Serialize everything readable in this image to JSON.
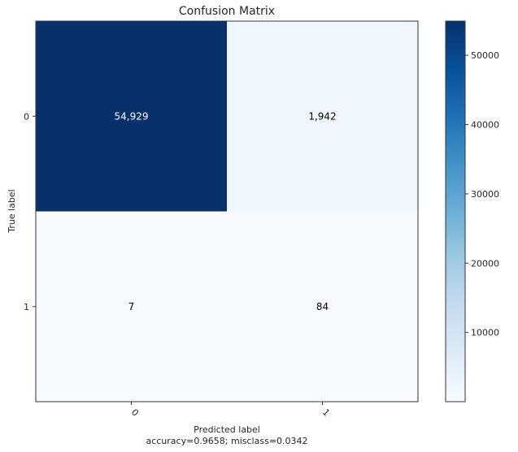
{
  "chart_data": {
    "type": "heatmap",
    "title": "Confusion Matrix",
    "xlabel": "Predicted label",
    "xlabel_sub": "accuracy=0.9658; misclass=0.0342",
    "ylabel": "True label",
    "x_categories": [
      "0",
      "1"
    ],
    "y_categories": [
      "0",
      "1"
    ],
    "values": [
      [
        54929,
        1942
      ],
      [
        7,
        84
      ]
    ],
    "value_labels": [
      [
        "54,929",
        "1,942"
      ],
      [
        "7",
        "84"
      ]
    ],
    "colormap": "Blues",
    "colorbar": {
      "range": [
        7,
        54929
      ],
      "ticks": [
        10000,
        20000,
        30000,
        40000,
        50000
      ],
      "tick_labels": [
        "10000",
        "20000",
        "30000",
        "40000",
        "50000"
      ]
    }
  }
}
